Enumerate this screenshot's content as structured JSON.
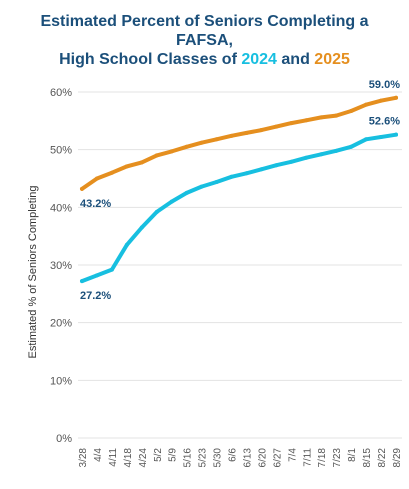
{
  "title": {
    "line1": "Estimated Percent of Seniors Completing a",
    "line2": "FAFSA,",
    "line3_prefix": "High School Classes of ",
    "year_a": "2024",
    "line3_middle": " and ",
    "year_b": "2025"
  },
  "colors": {
    "series_2024": "#17bfe0",
    "series_2025": "#e58f1f",
    "title": "#1b4f7a",
    "label": "#1b4f7a",
    "grid": "#e3e3e3",
    "tick": "#555555"
  },
  "chart_data": {
    "type": "line",
    "title": "Estimated Percent of Seniors Completing a FAFSA, High School Classes of 2024 and 2025",
    "xlabel": "",
    "ylabel": "Estimated % of Seniors Completing",
    "ylim": [
      0,
      60
    ],
    "yticks": [
      0,
      10,
      20,
      30,
      40,
      50,
      60
    ],
    "ytick_labels": [
      "0%",
      "10%",
      "20%",
      "30%",
      "40%",
      "50%",
      "60%"
    ],
    "grid": true,
    "legend": "none (series identified by title colors)",
    "categories": [
      "3/28",
      "4/4",
      "4/11",
      "4/18",
      "4/24",
      "5/2",
      "5/9",
      "5/16",
      "5/23",
      "5/30",
      "6/6",
      "6/13",
      "6/20",
      "6/27",
      "7/4",
      "7/11",
      "7/18",
      "7/23",
      "8/1",
      "8/15",
      "8/22",
      "8/29"
    ],
    "series": [
      {
        "name": "2024",
        "color": "#17bfe0",
        "values": [
          27.2,
          28.2,
          29.2,
          33.5,
          36.5,
          39.2,
          41.0,
          42.5,
          43.6,
          44.4,
          45.3,
          45.9,
          46.6,
          47.3,
          47.9,
          48.6,
          49.2,
          49.8,
          50.5,
          51.8,
          52.2,
          52.6
        ],
        "start_label": "27.2%",
        "end_label": "52.6%"
      },
      {
        "name": "2025",
        "color": "#e58f1f",
        "values": [
          43.2,
          45.0,
          46.0,
          47.1,
          47.8,
          49.0,
          49.7,
          50.5,
          51.2,
          51.8,
          52.4,
          52.9,
          53.4,
          54.0,
          54.6,
          55.1,
          55.6,
          55.9,
          56.7,
          57.8,
          58.5,
          59.0
        ],
        "start_label": "43.2%",
        "end_label": "59.0%"
      }
    ]
  }
}
